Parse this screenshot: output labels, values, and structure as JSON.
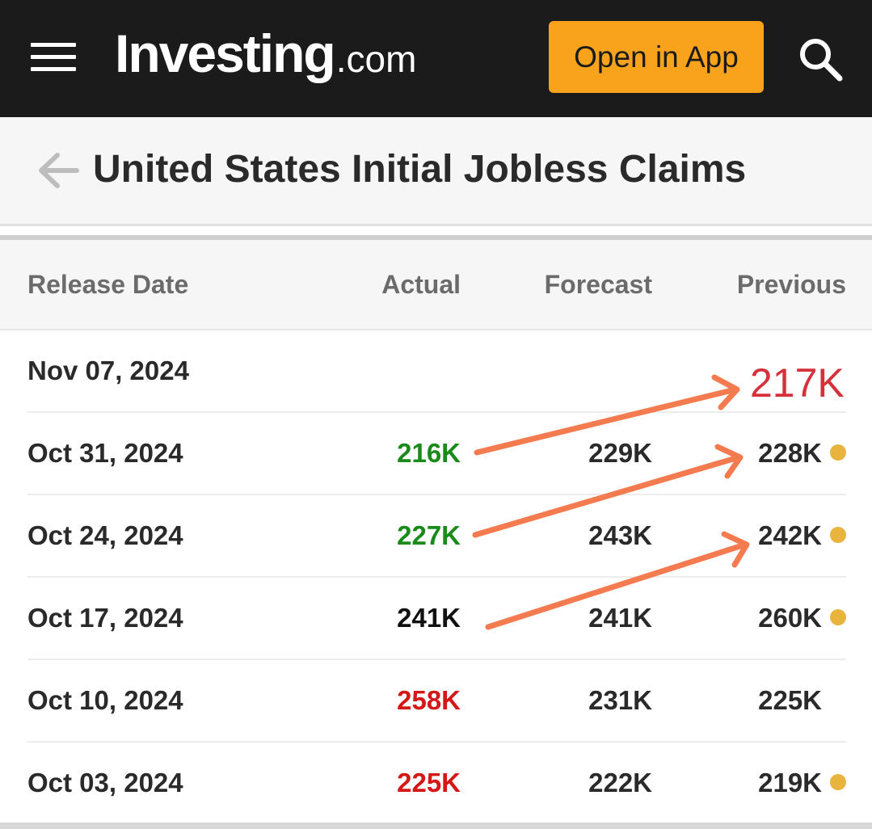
{
  "header": {
    "logo_main": "Investing",
    "logo_sub": ".com",
    "open_app_label": "Open in App",
    "brand_color": "#f8a31b",
    "icons": [
      "menu-icon",
      "search-icon"
    ]
  },
  "page": {
    "title": "United States Initial Jobless Claims",
    "back_icon": "arrow-left-icon"
  },
  "table": {
    "columns": [
      "Release Date",
      "Actual",
      "Forecast",
      "Previous"
    ],
    "rows": [
      {
        "date": "Nov 07, 2024",
        "actual": "",
        "forecast": "",
        "previous": "",
        "actual_status": "none",
        "revised": false
      },
      {
        "date": "Oct 31, 2024",
        "actual": "216K",
        "forecast": "229K",
        "previous": "228K",
        "actual_status": "better",
        "revised": true
      },
      {
        "date": "Oct 24, 2024",
        "actual": "227K",
        "forecast": "243K",
        "previous": "242K",
        "actual_status": "better",
        "revised": true
      },
      {
        "date": "Oct 17, 2024",
        "actual": "241K",
        "forecast": "241K",
        "previous": "260K",
        "actual_status": "neutral",
        "revised": true
      },
      {
        "date": "Oct 10, 2024",
        "actual": "258K",
        "forecast": "231K",
        "previous": "225K",
        "actual_status": "worse",
        "revised": false
      },
      {
        "date": "Oct 03, 2024",
        "actual": "225K",
        "forecast": "222K",
        "previous": "219K",
        "actual_status": "worse",
        "revised": true
      }
    ],
    "status_colors": {
      "better": "#1a8a1a",
      "worse": "#d41818",
      "neutral": "#111111"
    },
    "revised_dot_color": "#e8b43d"
  },
  "annotation": {
    "text": "217K",
    "color": "#d4313b",
    "arrow_color": "#f47b4f"
  }
}
